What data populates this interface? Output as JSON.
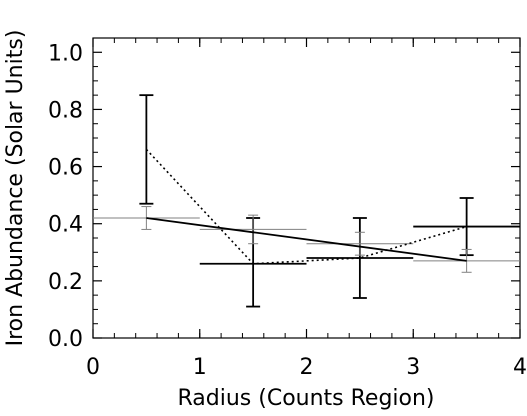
{
  "chart_data": {
    "type": "scatter",
    "title": "",
    "xlabel": "Radius (Counts Region)",
    "ylabel": "Iron Abundance (Solar Units)",
    "xlim": [
      0,
      4
    ],
    "ylim": [
      0,
      1.05
    ],
    "x_ticks": [
      "0",
      "1",
      "2",
      "3",
      "4"
    ],
    "y_ticks": [
      "0.0",
      "0.2",
      "0.4",
      "0.6",
      "0.8",
      "1.0"
    ],
    "grid": false,
    "legend": "none",
    "series": [
      {
        "style": "bold error bars with dotted connecting line",
        "color": "#000000",
        "points": [
          {
            "x": 0.5,
            "y": 0.66,
            "xerr": [
              0.5,
              0.5
            ],
            "yerr": [
              0.47,
              0.85
            ]
          },
          {
            "x": 1.5,
            "y": 0.26,
            "xerr": [
              1.0,
              2.0
            ],
            "yerr": [
              0.11,
              0.42
            ]
          },
          {
            "x": 2.5,
            "y": 0.28,
            "xerr": [
              2.0,
              3.0
            ],
            "yerr": [
              0.14,
              0.42
            ]
          },
          {
            "x": 3.5,
            "y": 0.39,
            "xerr": [
              3.0,
              4.0
            ],
            "yerr": [
              0.29,
              0.49
            ]
          }
        ]
      },
      {
        "style": "thin error bars",
        "color": "#808080",
        "points": [
          {
            "x": 0.5,
            "y": 0.42,
            "xerr": [
              0.0,
              1.0
            ],
            "yerr": [
              0.38,
              0.46
            ]
          },
          {
            "x": 1.5,
            "y": 0.38,
            "xerr": [
              1.0,
              2.0
            ],
            "yerr": [
              0.33,
              0.43
            ]
          },
          {
            "x": 2.5,
            "y": 0.33,
            "xerr": [
              2.0,
              3.0
            ],
            "yerr": [
              0.29,
              0.37
            ]
          },
          {
            "x": 3.5,
            "y": 0.27,
            "xerr": [
              3.0,
              4.0
            ],
            "yerr": [
              0.23,
              0.31
            ]
          }
        ]
      }
    ],
    "fit_line": {
      "x": [
        0.5,
        3.5
      ],
      "y": [
        0.42,
        0.27
      ]
    }
  }
}
